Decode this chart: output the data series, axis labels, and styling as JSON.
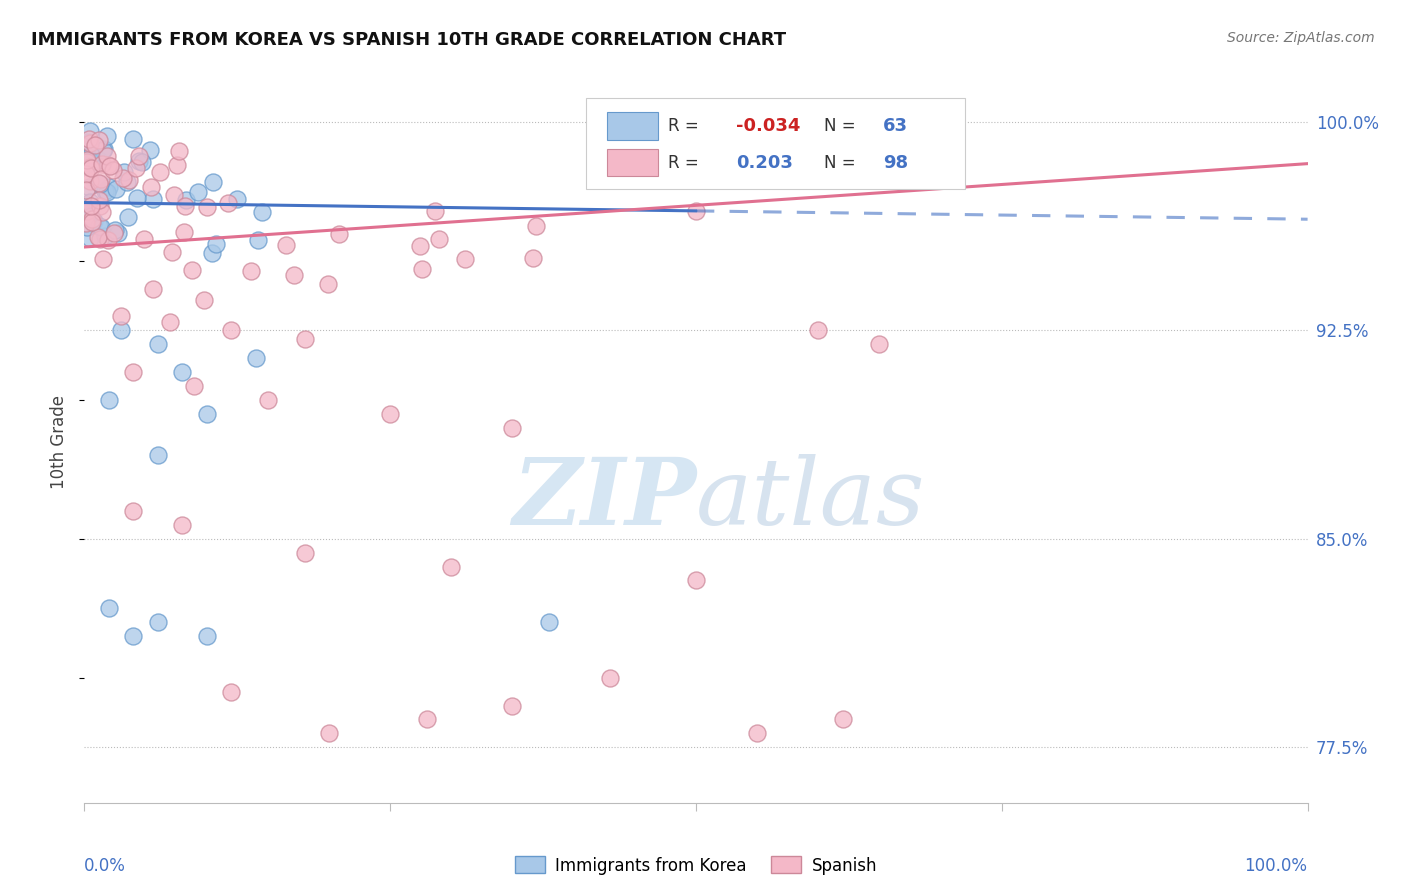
{
  "title": "IMMIGRANTS FROM KOREA VS SPANISH 10TH GRADE CORRELATION CHART",
  "source": "Source: ZipAtlas.com",
  "ylabel": "10th Grade",
  "y_tick_labels": [
    "77.5%",
    "85.0%",
    "92.5%",
    "100.0%"
  ],
  "y_tick_values": [
    0.775,
    0.85,
    0.925,
    1.0
  ],
  "legend_label1": "Immigrants from Korea",
  "legend_label2": "Spanish",
  "r1_val": "-0.034",
  "n1_val": "63",
  "r2_val": "0.203",
  "n2_val": "98",
  "color_korea_fill": "#a8c8e8",
  "color_korea_edge": "#6699cc",
  "color_spanish_fill": "#f4b8c8",
  "color_spanish_edge": "#cc8899",
  "color_line_korea": "#4472c4",
  "color_line_spanish": "#e07090",
  "color_blue_text": "#4472c4",
  "color_red_text": "#cc2222",
  "watermark_color": "#cce0f0",
  "xlim": [
    0.0,
    1.0
  ],
  "ylim": [
    0.755,
    1.015
  ],
  "korea_trend_start_x": 0.0,
  "korea_trend_end_solid_x": 0.5,
  "korea_trend_start_y": 0.971,
  "korea_trend_end_y": 0.965,
  "spanish_trend_start_x": 0.0,
  "spanish_trend_end_x": 1.0,
  "spanish_trend_start_y": 0.955,
  "spanish_trend_end_y": 0.985
}
